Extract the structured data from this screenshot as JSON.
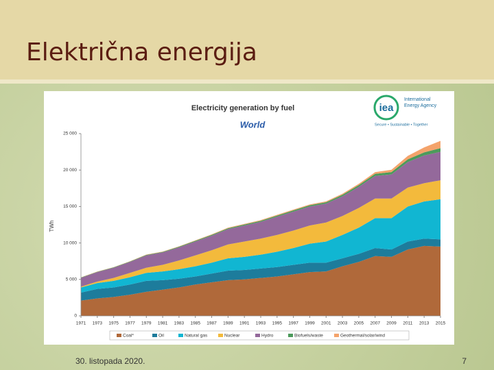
{
  "slide": {
    "title": "Električna energija",
    "date": "30. listopada 2020.",
    "page_number": "7"
  },
  "logo": {
    "mark": "iea",
    "name_line1": "International",
    "name_line2": "Energy Agency",
    "tagline": "Secure • Sustainable • Together"
  },
  "chart_data": {
    "type": "area",
    "stacked": true,
    "title": "Electricity generation by fuel",
    "subtitle": "World",
    "y_label": "TWh",
    "x": [
      1971,
      1973,
      1975,
      1977,
      1979,
      1981,
      1983,
      1985,
      1987,
      1989,
      1991,
      1993,
      1995,
      1997,
      1999,
      2001,
      2003,
      2005,
      2007,
      2009,
      2011,
      2013,
      2015
    ],
    "xlim": [
      1971,
      2015
    ],
    "xticks": [
      1971,
      1973,
      1975,
      1977,
      1979,
      1981,
      1983,
      1985,
      1987,
      1989,
      1991,
      1993,
      1995,
      1997,
      1999,
      2001,
      2003,
      2005,
      2007,
      2009,
      2011,
      2013,
      2015
    ],
    "ylim": [
      0,
      25000
    ],
    "yticks": [
      0,
      {
        "value": 5000,
        "label": "5 000"
      },
      {
        "value": 10000,
        "label": "10 000"
      },
      {
        "value": 15000,
        "label": "15 000"
      },
      {
        "value": 20000,
        "label": "20 000"
      },
      {
        "value": 25000,
        "label": "25 000"
      }
    ],
    "grid": false,
    "legend": "bottom",
    "series": [
      {
        "name": "Coal*",
        "color": "#b0693a",
        "values": [
          2100,
          2400,
          2600,
          2900,
          3300,
          3600,
          3900,
          4300,
          4600,
          4900,
          5000,
          5200,
          5400,
          5700,
          6000,
          6100,
          6800,
          7400,
          8200,
          8100,
          9100,
          9600,
          9500
        ]
      },
      {
        "name": "Oil",
        "color": "#1d7c9c",
        "values": [
          1100,
          1300,
          1300,
          1400,
          1500,
          1300,
          1200,
          1100,
          1200,
          1300,
          1300,
          1300,
          1300,
          1300,
          1300,
          1200,
          1100,
          1100,
          1100,
          1000,
          1100,
          1000,
          1000
        ]
      },
      {
        "name": "Natural gas",
        "color": "#11b6d2",
        "values": [
          700,
          800,
          900,
          1000,
          1100,
          1200,
          1300,
          1400,
          1500,
          1700,
          1800,
          1900,
          2100,
          2300,
          2600,
          2900,
          3200,
          3600,
          4100,
          4300,
          4800,
          5100,
          5500
        ]
      },
      {
        "name": "Nuclear",
        "color": "#f3ba3c",
        "values": [
          110,
          200,
          400,
          600,
          700,
          900,
          1200,
          1500,
          1700,
          1900,
          2100,
          2200,
          2300,
          2400,
          2500,
          2600,
          2600,
          2700,
          2700,
          2700,
          2600,
          2500,
          2600
        ]
      },
      {
        "name": "Hydro",
        "color": "#94699b",
        "values": [
          1200,
          1300,
          1400,
          1500,
          1700,
          1700,
          1800,
          1900,
          2000,
          2100,
          2200,
          2300,
          2500,
          2600,
          2600,
          2600,
          2700,
          2900,
          3100,
          3300,
          3500,
          3800,
          3900
        ]
      },
      {
        "name": "Biofuels/waste",
        "color": "#4c9a5b",
        "values": [
          50,
          50,
          60,
          60,
          70,
          80,
          90,
          100,
          110,
          120,
          130,
          140,
          160,
          170,
          180,
          190,
          210,
          240,
          280,
          320,
          380,
          430,
          500
        ]
      },
      {
        "name": "Geothermal/solar/wind",
        "color": "#f4a36b",
        "values": [
          30,
          30,
          30,
          40,
          40,
          40,
          50,
          60,
          70,
          80,
          90,
          100,
          100,
          110,
          110,
          120,
          140,
          170,
          230,
          320,
          470,
          680,
          1000
        ]
      }
    ]
  }
}
